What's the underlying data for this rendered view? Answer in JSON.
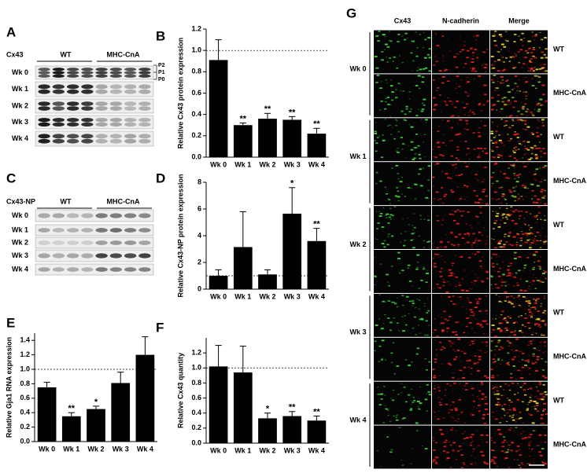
{
  "panel_a": {
    "letter": "A",
    "protein": "Cx43",
    "groups": [
      "WT",
      "MHC-CnA"
    ],
    "rows": [
      "Wk 0",
      "Wk 1",
      "Wk 2",
      "Wk 3",
      "Wk 4"
    ],
    "bands": [
      "P2",
      "P1",
      "P0"
    ]
  },
  "panel_c": {
    "letter": "C",
    "protein": "Cx43-NP",
    "groups": [
      "WT",
      "MHC-CnA"
    ],
    "rows": [
      "Wk 0",
      "Wk 1",
      "Wk 2",
      "Wk 3",
      "Wk 4"
    ]
  },
  "chart_data": [
    {
      "letter": "B",
      "type": "bar",
      "y_label": "Relative Cx43 protein expression",
      "color": "#000000",
      "categories": [
        "Wk 0",
        "Wk 1",
        "Wk 2",
        "Wk 3",
        "Wk 4"
      ],
      "values": [
        0.91,
        0.3,
        0.36,
        0.35,
        0.22
      ],
      "errors": [
        0.19,
        0.02,
        0.05,
        0.03,
        0.05
      ],
      "annotations": [
        null,
        "**",
        "**",
        "**",
        "**"
      ],
      "ref_line": 1,
      "ylim": [
        0,
        1.2
      ],
      "yticks": [
        {
          "value": 0,
          "label": "0.0"
        },
        0.2,
        0.4,
        0.6,
        0.8,
        {
          "value": 1,
          "label": "1.0"
        },
        1.2
      ]
    },
    {
      "letter": "D",
      "type": "bar",
      "y_label": "Relative Cx43-NP protein expression",
      "color": "#000000",
      "categories": [
        "Wk 0",
        "Wk 1",
        "Wk 2",
        "Wk 3",
        "Wk 4"
      ],
      "values": [
        1.0,
        3.15,
        1.1,
        5.65,
        3.6
      ],
      "errors": [
        0.45,
        2.65,
        0.35,
        1.95,
        0.95
      ],
      "annotations": [
        null,
        null,
        null,
        "*",
        "**"
      ],
      "ref_line": 1,
      "ylim": [
        0,
        8
      ],
      "yticks": [
        0,
        2,
        4,
        6,
        8
      ]
    },
    {
      "letter": "E",
      "type": "bar",
      "y_label": "Relative Gja1 RNA expression",
      "color": "#000000",
      "categories": [
        "Wk 0",
        "Wk 1",
        "Wk 2",
        "Wk 3",
        "Wk 4"
      ],
      "values": [
        0.75,
        0.35,
        0.45,
        0.81,
        1.2
      ],
      "errors": [
        0.07,
        0.05,
        0.04,
        0.15,
        0.25
      ],
      "annotations": [
        null,
        "**",
        "*",
        null,
        null
      ],
      "ref_line": 1,
      "ylim": [
        0,
        1.5
      ],
      "yticks": [
        {
          "value": 0,
          "label": "0.0"
        },
        0.2,
        0.4,
        0.6,
        0.8,
        {
          "value": 1,
          "label": "1.0"
        },
        1.2,
        1.4
      ]
    },
    {
      "letter": "F",
      "type": "bar",
      "y_label": "Relative Cx43 quantity",
      "color": "#000000",
      "categories": [
        "Wk 0",
        "Wk 1",
        "Wk 2",
        "Wk 3",
        "Wk 4"
      ],
      "values": [
        1.02,
        0.94,
        0.33,
        0.36,
        0.3
      ],
      "errors": [
        0.28,
        0.35,
        0.07,
        0.06,
        0.06
      ],
      "annotations": [
        null,
        null,
        "*",
        "**",
        "**"
      ],
      "ref_line": 1,
      "ylim": [
        0,
        1.4
      ],
      "yticks": [
        {
          "value": 0,
          "label": "0.0"
        },
        0.2,
        0.4,
        0.6,
        0.8,
        {
          "value": 1,
          "label": "1.0"
        },
        1.2
      ]
    }
  ],
  "panel_g": {
    "letter": "G",
    "columns": [
      "Cx43",
      "N-cadherin",
      "Merge"
    ],
    "weeks": [
      "Wk 0",
      "Wk 1",
      "Wk 2",
      "Wk 3",
      "Wk 4"
    ],
    "genotypes": [
      "WT",
      "MHC-CnA"
    ]
  }
}
